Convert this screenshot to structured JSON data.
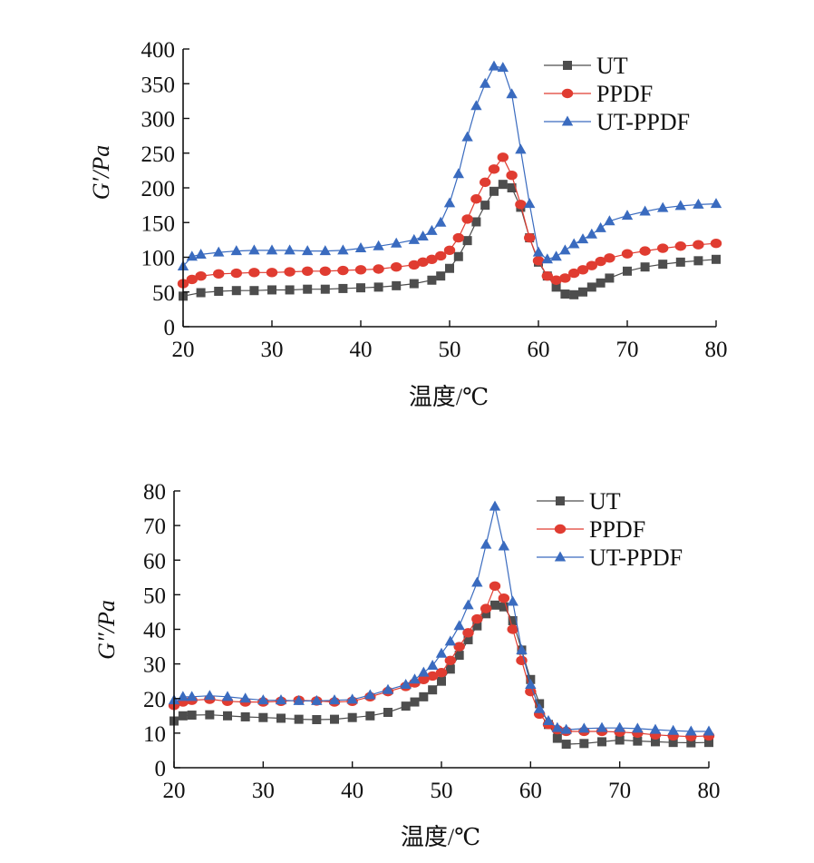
{
  "chart_data": [
    {
      "type": "line",
      "ylabel": "G′/Pa",
      "xlabel": "温度/℃",
      "xlim": [
        20,
        80
      ],
      "ylim": [
        0,
        400
      ],
      "xticks": [
        20,
        30,
        40,
        50,
        60,
        70,
        80
      ],
      "yticks": [
        0,
        50,
        100,
        150,
        200,
        250,
        300,
        350,
        400
      ],
      "legend_position": "top-right",
      "grid": false,
      "series": [
        {
          "name": "UT",
          "color": "#4d4d4d",
          "marker": "square",
          "x": [
            20,
            22,
            24,
            26,
            28,
            30,
            32,
            34,
            36,
            38,
            40,
            42,
            44,
            46,
            48,
            49,
            50,
            51,
            52,
            53,
            54,
            55,
            56,
            57,
            58,
            59,
            60,
            61,
            62,
            63,
            64,
            65,
            66,
            67,
            68,
            70,
            72,
            74,
            76,
            78,
            80
          ],
          "values": [
            44,
            49,
            51,
            52,
            52,
            53,
            53,
            54,
            54,
            55,
            56,
            57,
            59,
            62,
            67,
            73,
            84,
            101,
            124,
            151,
            175,
            195,
            205,
            200,
            172,
            128,
            93,
            73,
            57,
            47,
            46,
            50,
            57,
            63,
            70,
            80,
            86,
            90,
            93,
            95,
            97
          ]
        },
        {
          "name": "PPDF",
          "color": "#e03c31",
          "marker": "circle",
          "x": [
            20,
            21,
            22,
            24,
            26,
            28,
            30,
            32,
            34,
            36,
            38,
            40,
            42,
            44,
            46,
            47,
            48,
            49,
            50,
            51,
            52,
            53,
            54,
            55,
            56,
            57,
            58,
            59,
            60,
            61,
            62,
            63,
            64,
            65,
            66,
            67,
            68,
            70,
            72,
            74,
            76,
            78,
            80
          ],
          "values": [
            62,
            68,
            73,
            76,
            77,
            78,
            78,
            79,
            80,
            80,
            81,
            82,
            83,
            86,
            89,
            93,
            97,
            102,
            110,
            128,
            155,
            184,
            208,
            227,
            244,
            218,
            176,
            128,
            95,
            73,
            67,
            70,
            77,
            82,
            88,
            94,
            99,
            105,
            109,
            113,
            116,
            118,
            120
          ]
        },
        {
          "name": "UT-PPDF",
          "color": "#3a6bbf",
          "marker": "triangle",
          "x": [
            20,
            21,
            22,
            24,
            26,
            28,
            30,
            32,
            34,
            36,
            38,
            40,
            42,
            44,
            46,
            47,
            48,
            49,
            50,
            51,
            52,
            53,
            54,
            55,
            56,
            57,
            58,
            59,
            60,
            61,
            62,
            63,
            64,
            65,
            66,
            67,
            68,
            70,
            72,
            74,
            76,
            78,
            80
          ],
          "values": [
            87,
            101,
            104,
            107,
            109,
            110,
            110,
            110,
            109,
            109,
            110,
            113,
            116,
            120,
            125,
            130,
            138,
            150,
            178,
            220,
            273,
            318,
            350,
            375,
            373,
            335,
            255,
            177,
            107,
            97,
            101,
            110,
            119,
            126,
            133,
            142,
            152,
            160,
            166,
            171,
            174,
            176,
            177
          ]
        }
      ]
    },
    {
      "type": "line",
      "ylabel": "G″/Pa",
      "xlabel": "温度/℃",
      "xlim": [
        20,
        80
      ],
      "ylim": [
        0,
        80
      ],
      "xticks": [
        20,
        30,
        40,
        50,
        60,
        70,
        80
      ],
      "yticks": [
        0,
        10,
        20,
        30,
        40,
        50,
        60,
        70,
        80
      ],
      "legend_position": "top-right",
      "grid": false,
      "series": [
        {
          "name": "UT",
          "color": "#4d4d4d",
          "marker": "square",
          "x": [
            20,
            21,
            22,
            24,
            26,
            28,
            30,
            32,
            34,
            36,
            38,
            40,
            42,
            44,
            46,
            47,
            48,
            49,
            50,
            51,
            52,
            53,
            54,
            55,
            56,
            57,
            58,
            59,
            60,
            61,
            62,
            63,
            64,
            66,
            68,
            70,
            72,
            74,
            76,
            78,
            80
          ],
          "values": [
            13.5,
            15,
            15.2,
            15.3,
            15,
            14.7,
            14.5,
            14.3,
            14,
            13.9,
            14,
            14.5,
            15,
            16,
            17.8,
            19,
            20.5,
            22.5,
            25,
            28.5,
            32.5,
            37,
            41,
            44.5,
            47,
            46.5,
            42.5,
            34,
            25.5,
            18.5,
            12.5,
            8.5,
            6.8,
            7,
            7.5,
            8,
            7.7,
            7.5,
            7.3,
            7.2,
            7.3
          ]
        },
        {
          "name": "PPDF",
          "color": "#e03c31",
          "marker": "circle",
          "x": [
            20,
            21,
            22,
            24,
            26,
            28,
            30,
            32,
            34,
            36,
            38,
            40,
            42,
            44,
            46,
            47,
            48,
            49,
            50,
            51,
            52,
            53,
            54,
            55,
            56,
            57,
            58,
            59,
            60,
            61,
            62,
            63,
            64,
            66,
            68,
            70,
            72,
            74,
            76,
            78,
            80
          ],
          "values": [
            18,
            19,
            19.5,
            19.8,
            19.2,
            19,
            19,
            19.2,
            19.5,
            19.3,
            19,
            19.2,
            20.5,
            22,
            23.5,
            24.5,
            25.5,
            26.5,
            27.5,
            31,
            35,
            39,
            43,
            46,
            52.5,
            49,
            40,
            31,
            22,
            15.5,
            12.5,
            11,
            10.5,
            10.5,
            10.5,
            10.3,
            10,
            9.5,
            9.2,
            9,
            9.2
          ]
        },
        {
          "name": "UT-PPDF",
          "color": "#3a6bbf",
          "marker": "triangle",
          "x": [
            20,
            21,
            22,
            24,
            26,
            28,
            30,
            32,
            34,
            36,
            38,
            40,
            42,
            44,
            46,
            47,
            48,
            49,
            50,
            51,
            52,
            53,
            54,
            55,
            56,
            57,
            58,
            59,
            60,
            61,
            62,
            63,
            64,
            66,
            68,
            70,
            72,
            74,
            76,
            78,
            80
          ],
          "values": [
            19.5,
            20.5,
            20.5,
            20.8,
            20.5,
            20,
            19.5,
            19.5,
            19.3,
            19.3,
            19.5,
            19.7,
            21,
            22.5,
            24,
            25.5,
            27.5,
            29.5,
            33,
            36.5,
            41,
            47,
            53.5,
            64.5,
            75.5,
            64,
            48,
            34,
            24,
            17,
            13.5,
            11.5,
            11,
            11.3,
            11.5,
            11.5,
            11.3,
            11,
            10.7,
            10.5,
            10.5
          ]
        }
      ]
    }
  ]
}
